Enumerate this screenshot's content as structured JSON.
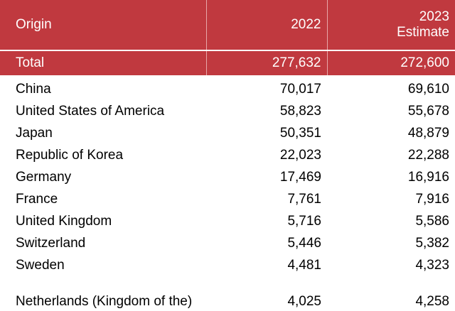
{
  "table": {
    "header": [
      "Origin",
      "2022",
      "2023 Estimate"
    ],
    "total": [
      "Total",
      "277,632",
      "272,600"
    ],
    "rows": [
      [
        "China",
        "70,017",
        "69,610"
      ],
      [
        "United States of America",
        "58,823",
        "55,678"
      ],
      [
        "Japan",
        "50,351",
        "48,879"
      ],
      [
        "Republic of Korea",
        "22,023",
        "22,288"
      ],
      [
        "Germany",
        "17,469",
        "16,916"
      ],
      [
        "France",
        "7,761",
        "7,916"
      ],
      [
        "United Kingdom",
        "5,716",
        "5,586"
      ],
      [
        "Switzerland",
        "5,446",
        "5,382"
      ],
      [
        "Sweden",
        "4,481",
        "4,323"
      ],
      [
        "Netherlands (Kingdom of the)",
        "4,025",
        "4,258"
      ]
    ]
  }
}
